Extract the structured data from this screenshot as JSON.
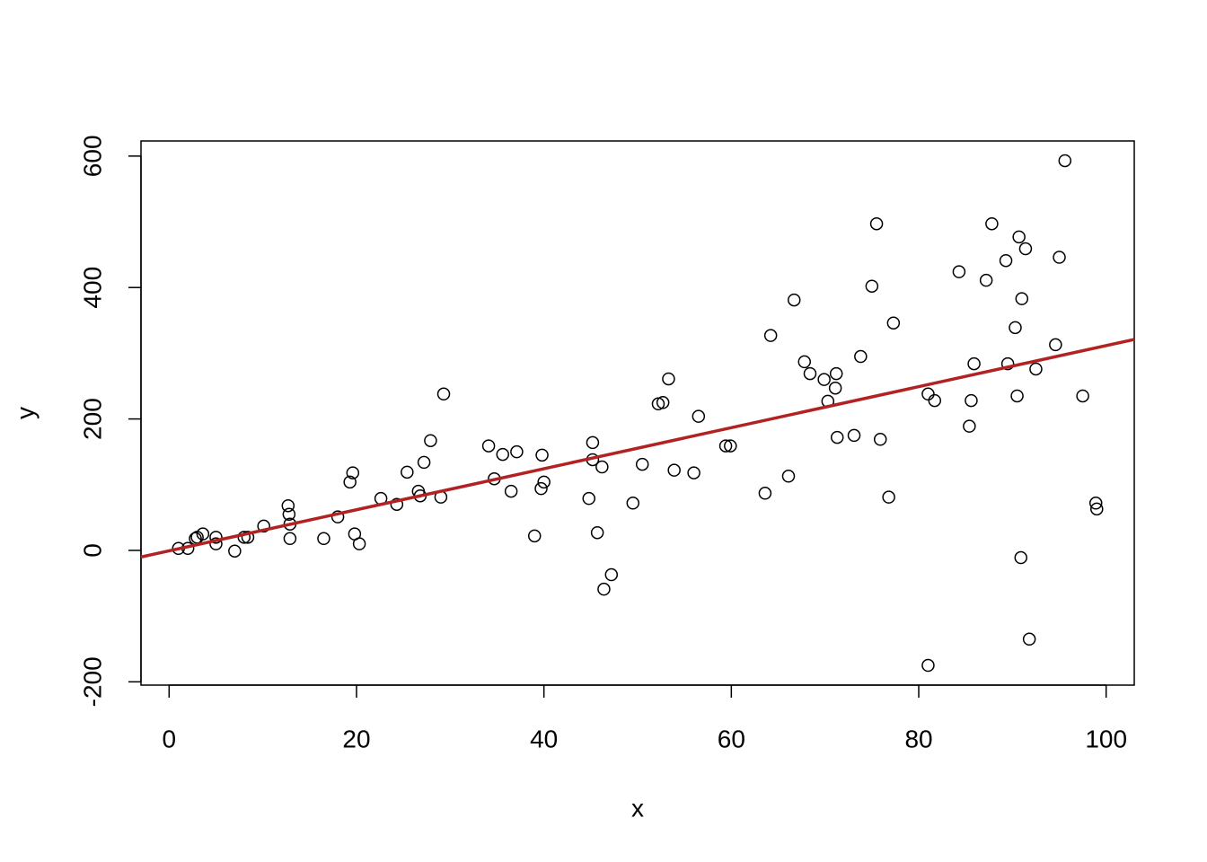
{
  "chart_data": {
    "type": "scatter",
    "xlabel": "x",
    "ylabel": "y",
    "x": [
      1.0,
      2.0,
      2.8,
      3.0,
      3.6,
      5.0,
      5.0,
      7.0,
      8.0,
      8.4,
      10.1,
      12.7,
      12.8,
      12.9,
      12.9,
      16.5,
      18.0,
      19.3,
      19.6,
      19.8,
      20.3,
      22.6,
      24.3,
      25.4,
      26.6,
      26.8,
      27.2,
      27.9,
      29.0,
      29.3,
      34.1,
      34.7,
      35.6,
      36.5,
      37.1,
      39.0,
      39.7,
      39.8,
      40.0,
      44.8,
      45.2,
      45.2,
      45.7,
      46.2,
      46.4,
      47.2,
      49.5,
      50.5,
      52.2,
      52.7,
      53.3,
      53.9,
      56.0,
      56.5,
      59.4,
      59.9,
      63.6,
      64.2,
      66.1,
      66.7,
      67.8,
      68.4,
      69.9,
      70.3,
      71.1,
      71.2,
      71.3,
      73.1,
      73.8,
      75.0,
      75.5,
      75.9,
      76.8,
      77.3,
      81.0,
      81.0,
      81.7,
      84.3,
      85.4,
      85.6,
      85.9,
      87.2,
      87.8,
      89.3,
      89.5,
      90.3,
      90.5,
      90.7,
      90.9,
      91.0,
      91.4,
      91.8,
      92.5,
      94.6,
      95.0,
      95.6,
      97.5,
      98.9,
      99.0
    ],
    "y": [
      3,
      3,
      18,
      20,
      25,
      20,
      10,
      -1,
      20,
      20,
      37,
      68,
      55,
      40,
      18,
      18,
      51,
      104,
      118,
      25,
      10,
      79,
      70,
      119,
      90,
      83,
      134,
      167,
      81,
      238,
      159,
      109,
      146,
      90,
      150,
      22,
      94,
      145,
      104,
      79,
      164,
      138,
      27,
      127,
      -59,
      -37,
      72,
      131,
      223,
      225,
      261,
      122,
      118,
      204,
      159,
      159,
      87,
      327,
      113,
      381,
      287,
      269,
      260,
      227,
      247,
      269,
      172,
      175,
      295,
      402,
      497,
      169,
      81,
      346,
      238,
      -175,
      228,
      424,
      189,
      228,
      284,
      411,
      497,
      441,
      284,
      339,
      235,
      477,
      -11,
      383,
      459,
      -135,
      276,
      313,
      446,
      593,
      235,
      72,
      63
    ],
    "point_color": "#000000",
    "fit": {
      "x": [
        -3,
        103
      ],
      "y": [
        -10,
        321
      ],
      "color": "#b22222"
    },
    "xlim": [
      -3,
      103
    ],
    "ylim": [
      -205,
      623
    ],
    "xticks": [
      0,
      20,
      40,
      60,
      80,
      100
    ],
    "yticks": [
      -200,
      0,
      200,
      400,
      600
    ]
  }
}
